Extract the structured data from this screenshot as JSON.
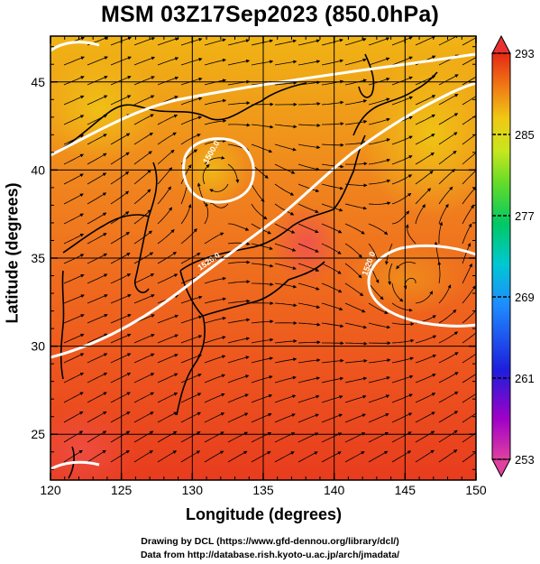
{
  "title": "MSM 03Z17Sep2023 (850.0hPa)",
  "x_axis": {
    "label": "Longitude (degrees)",
    "min": 120,
    "max": 150,
    "ticks": [
      "120",
      "125",
      "130",
      "135",
      "140",
      "145",
      "150"
    ]
  },
  "y_axis": {
    "label": "Latitude  (degrees)",
    "min": 22.4,
    "max": 47.6,
    "ticks": [
      "25",
      "30",
      "35",
      "40",
      "45"
    ]
  },
  "colorbar": {
    "min": 253,
    "max": 293,
    "labels": [
      "293",
      "285",
      "277",
      "269",
      "261",
      "253"
    ],
    "colors": [
      "#e0409a",
      "#a000c8",
      "#1e1edc",
      "#1e78ff",
      "#00c8dc",
      "#00c864",
      "#64dc32",
      "#c8e61e",
      "#ffd21e",
      "#ff9614",
      "#ff5a14",
      "#e61e1e"
    ]
  },
  "contours": [
    {
      "label": "1500.0"
    },
    {
      "label": "1520.0"
    },
    {
      "label": "1520.0"
    }
  ],
  "footer": {
    "line1": "Drawing by DCL (https://www.gfd-dennou.org/library/dcl/)",
    "line2": "Data from http://database.rish.kyoto-u.ac.jp/arch/jmadata/"
  }
}
